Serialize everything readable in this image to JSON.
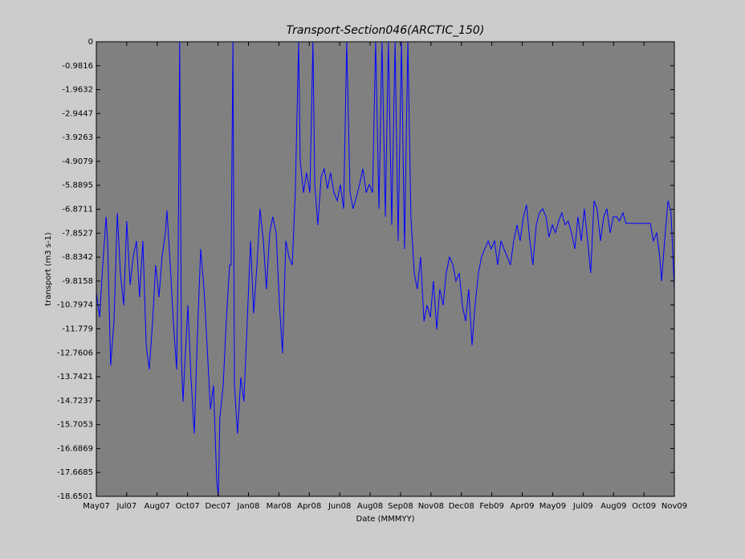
{
  "chart_data": {
    "type": "line",
    "title": "Transport-Section046(ARCTIC_150)",
    "x_label": "Date (MMMYY)",
    "y_label": "transport (m3 s-1)",
    "xlim": [
      0,
      19
    ],
    "ylim": [
      -18.6501,
      0
    ],
    "xticks": [
      {
        "value": 0,
        "label": "May07"
      },
      {
        "value": 1,
        "label": "Jul07"
      },
      {
        "value": 2,
        "label": "Aug07"
      },
      {
        "value": 3,
        "label": "Oct07"
      },
      {
        "value": 4,
        "label": "Dec07"
      },
      {
        "value": 5,
        "label": "Jan08"
      },
      {
        "value": 6,
        "label": "Mar08"
      },
      {
        "value": 7,
        "label": "Apr08"
      },
      {
        "value": 8,
        "label": "Jun08"
      },
      {
        "value": 9,
        "label": "Aug08"
      },
      {
        "value": 10,
        "label": "Sep08"
      },
      {
        "value": 11,
        "label": "Nov08"
      },
      {
        "value": 12,
        "label": "Dec08"
      },
      {
        "value": 13,
        "label": "Feb09"
      },
      {
        "value": 14,
        "label": "Apr09"
      },
      {
        "value": 15,
        "label": "May09"
      },
      {
        "value": 16,
        "label": "Jul09"
      },
      {
        "value": 17,
        "label": "Aug09"
      },
      {
        "value": 18,
        "label": "Oct09"
      },
      {
        "value": 19,
        "label": "Nov09"
      }
    ],
    "yticks": [
      0,
      -0.9816,
      -1.9632,
      -2.9447,
      -3.9263,
      -4.9079,
      -5.8895,
      -6.8711,
      -7.8527,
      -8.8342,
      -9.8158,
      -10.7974,
      -11.779,
      -12.7606,
      -13.7421,
      -14.7237,
      -15.7053,
      -16.6869,
      -17.6685,
      -18.6501
    ],
    "series": [
      {
        "name": "transport",
        "color": "#0000ff",
        "x": [
          0,
          0.11,
          0.21,
          0.32,
          0.37,
          0.47,
          0.58,
          0.69,
          0.79,
          0.9,
          1.0,
          1.11,
          1.21,
          1.32,
          1.42,
          1.53,
          1.64,
          1.74,
          1.85,
          1.95,
          2.06,
          2.16,
          2.27,
          2.32,
          2.43,
          2.53,
          2.64,
          2.69,
          2.74,
          2.8,
          2.85,
          2.9,
          3.01,
          3.11,
          3.22,
          3.32,
          3.43,
          3.54,
          3.64,
          3.75,
          3.85,
          3.96,
          4.01,
          4.06,
          4.17,
          4.27,
          4.38,
          4.43,
          4.49,
          4.54,
          4.64,
          4.75,
          4.85,
          4.96,
          5.07,
          5.17,
          5.28,
          5.38,
          5.49,
          5.59,
          5.7,
          5.8,
          5.91,
          6.02,
          6.12,
          6.23,
          6.33,
          6.44,
          6.54,
          6.65,
          6.7,
          6.81,
          6.91,
          7.02,
          7.12,
          7.18,
          7.28,
          7.39,
          7.49,
          7.6,
          7.7,
          7.81,
          7.92,
          8.02,
          8.13,
          8.23,
          8.34,
          8.44,
          8.55,
          8.65,
          8.76,
          8.87,
          8.97,
          9.08,
          9.18,
          9.29,
          9.39,
          9.5,
          9.6,
          9.71,
          9.82,
          9.92,
          10.03,
          10.13,
          10.24,
          10.34,
          10.45,
          10.55,
          10.66,
          10.77,
          10.87,
          10.98,
          11.08,
          11.19,
          11.29,
          11.4,
          11.5,
          11.61,
          11.72,
          11.82,
          11.93,
          12.03,
          12.14,
          12.24,
          12.35,
          12.45,
          12.56,
          12.66,
          12.77,
          12.88,
          12.98,
          13.09,
          13.19,
          13.3,
          13.4,
          13.51,
          13.61,
          13.72,
          13.83,
          13.93,
          14.04,
          14.14,
          14.25,
          14.35,
          14.46,
          14.56,
          14.67,
          14.78,
          14.88,
          14.99,
          15.09,
          15.2,
          15.3,
          15.41,
          15.51,
          15.62,
          15.73,
          15.83,
          15.94,
          16.04,
          16.15,
          16.25,
          16.36,
          16.46,
          16.57,
          16.68,
          16.78,
          16.89,
          16.99,
          17.1,
          17.2,
          17.31,
          17.41,
          18.21,
          18.31,
          18.42,
          18.52,
          18.58,
          18.68,
          18.79,
          18.89,
          19.0
        ],
        "values": [
          -10.31,
          -11.3,
          -9.16,
          -7.18,
          -8.17,
          -13.28,
          -11.47,
          -7.02,
          -9.49,
          -10.81,
          -7.35,
          -9.98,
          -8.83,
          -8.17,
          -10.48,
          -8.17,
          -12.45,
          -13.44,
          -11.47,
          -9.16,
          -10.48,
          -8.83,
          -7.84,
          -6.92,
          -9.16,
          -11.47,
          -13.44,
          -8.83,
          0,
          -13.11,
          -14.76,
          -13.44,
          -10.81,
          -13.77,
          -16.08,
          -12.13,
          -8.5,
          -10.15,
          -12.45,
          -15.09,
          -14.1,
          -18.06,
          -18.65,
          -15.42,
          -14.1,
          -11.47,
          -9.16,
          -9.16,
          0,
          -14.1,
          -16.08,
          -13.77,
          -14.76,
          -11.47,
          -8.17,
          -11.14,
          -9.16,
          -6.85,
          -8.17,
          -10.15,
          -7.84,
          -7.18,
          -7.84,
          -10.81,
          -12.78,
          -8.17,
          -8.83,
          -9.16,
          -6.19,
          0,
          -4.88,
          -6.19,
          -5.37,
          -6.19,
          0,
          -5.86,
          -7.51,
          -5.54,
          -5.21,
          -6.03,
          -5.37,
          -6.19,
          -6.52,
          -5.86,
          -6.85,
          0,
          -6.19,
          -6.85,
          -6.36,
          -5.86,
          -5.21,
          -6.19,
          -5.86,
          -6.19,
          0,
          -6.85,
          0,
          -7.18,
          0,
          -7.51,
          0,
          -8.17,
          0,
          -8.5,
          0,
          -7.18,
          -9.49,
          -10.15,
          -8.83,
          -11.47,
          -10.81,
          -11.3,
          -9.82,
          -11.8,
          -10.15,
          -10.81,
          -9.49,
          -8.83,
          -9.16,
          -9.82,
          -9.49,
          -10.81,
          -11.47,
          -10.15,
          -12.45,
          -10.81,
          -9.49,
          -8.83,
          -8.5,
          -8.17,
          -8.5,
          -8.17,
          -9.16,
          -8.17,
          -8.5,
          -8.83,
          -9.16,
          -8.17,
          -7.51,
          -8.17,
          -7.18,
          -6.69,
          -8.17,
          -9.16,
          -7.51,
          -7.02,
          -6.85,
          -7.18,
          -8.01,
          -7.51,
          -7.84,
          -7.35,
          -7.02,
          -7.51,
          -7.35,
          -7.84,
          -8.5,
          -7.18,
          -8.17,
          -6.85,
          -8.17,
          -9.49,
          -6.52,
          -6.85,
          -8.17,
          -7.18,
          -6.85,
          -7.84,
          -7.18,
          -7.18,
          -7.35,
          -7.02,
          -7.45,
          -7.45,
          -8.17,
          -7.84,
          -8.83,
          -9.82,
          -8.17,
          -6.52,
          -7.02,
          -10.15
        ]
      }
    ]
  }
}
